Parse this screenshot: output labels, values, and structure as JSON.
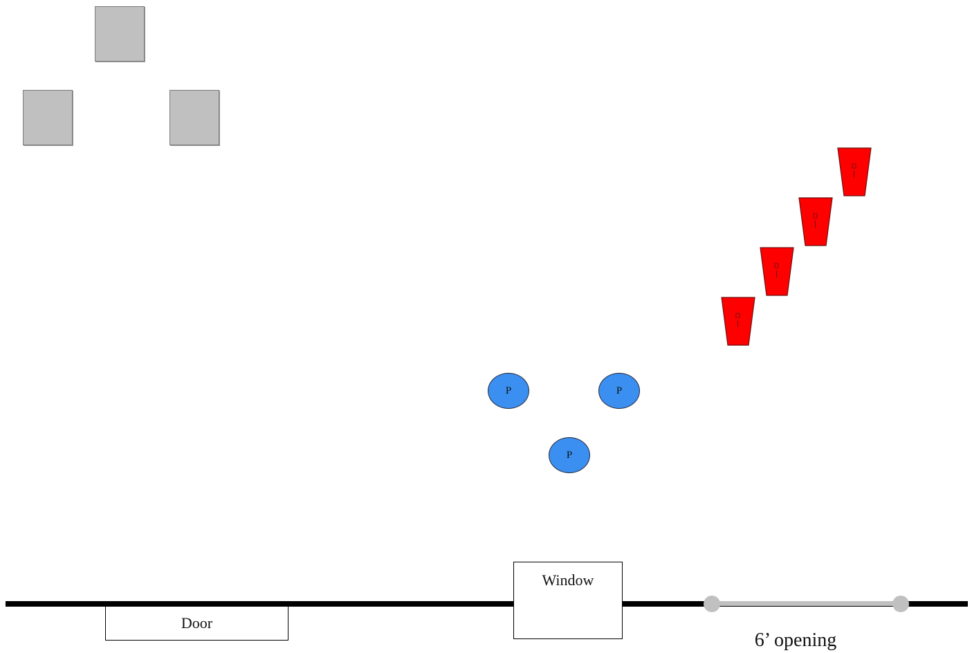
{
  "colors": {
    "crate": "#c0c0c0",
    "player": "#3a8ff0",
    "cone": "#ff0000",
    "wall": "#000000",
    "opening": "#c0c0c0"
  },
  "crates": [
    {
      "name": "crate-top"
    },
    {
      "name": "crate-left"
    },
    {
      "name": "crate-right"
    }
  ],
  "cones": [
    {
      "name": "cone-1"
    },
    {
      "name": "cone-2"
    },
    {
      "name": "cone-3"
    },
    {
      "name": "cone-4"
    }
  ],
  "players": [
    {
      "label": "P"
    },
    {
      "label": "P"
    },
    {
      "label": "P"
    }
  ],
  "door": {
    "label": "Door"
  },
  "window": {
    "label": "Window"
  },
  "opening": {
    "label": "6’ opening"
  }
}
